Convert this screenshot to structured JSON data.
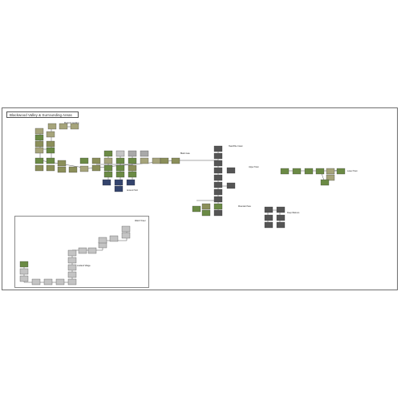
{
  "map_title": "Blackwood Valley & Surrounding Areas",
  "map_subtitle": "",
  "annotations": {
    "top_cluster": "Mugwort Landing",
    "south_cluster": "Ancient Hold",
    "city_label": "Black Gate",
    "east_label_1": "Hearthfire Coast",
    "east_label_2": "Mountain Pass",
    "far_east_label": "Upper Town",
    "far_east_sub": "Lower Town",
    "lower_dark_label": "Deep Warrens",
    "inset_top_label": "Watch Tower",
    "inset_mid_label": "Lowland Village"
  },
  "colors": {
    "green": "#6b8a45",
    "olive": "#8b8f5a",
    "khaki": "#a6a47b",
    "gray": "#a9a9a9",
    "lightgray": "#c4c4c4",
    "dark": "#555555",
    "navy": "#34446d",
    "line": "#555555"
  }
}
